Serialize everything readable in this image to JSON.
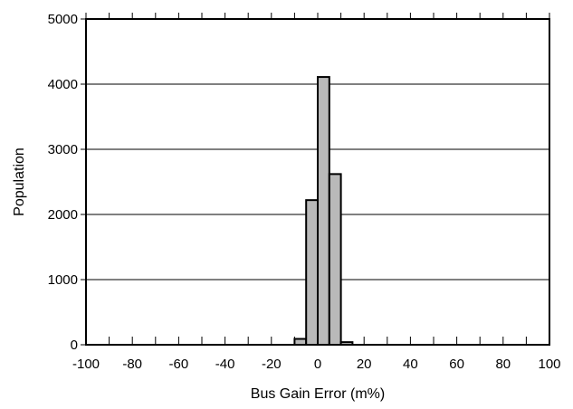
{
  "chart_data": {
    "type": "bar",
    "title": "",
    "xlabel": "Bus Gain Error (m%)",
    "ylabel": "Population",
    "xlim": [
      -100,
      100
    ],
    "ylim": [
      0,
      5000
    ],
    "xticks": [
      -100,
      -80,
      -60,
      -40,
      -20,
      0,
      20,
      40,
      60,
      80,
      100
    ],
    "yticks": [
      0,
      1000,
      2000,
      3000,
      4000,
      5000
    ],
    "bin_width": 5,
    "bins": [
      {
        "x_start": -10,
        "x_end": -5,
        "value": 90
      },
      {
        "x_start": -5,
        "x_end": 0,
        "value": 2220
      },
      {
        "x_start": 0,
        "x_end": 5,
        "value": 4110
      },
      {
        "x_start": 5,
        "x_end": 10,
        "value": 2620
      },
      {
        "x_start": 10,
        "x_end": 15,
        "value": 40
      }
    ],
    "bar_color": "#b9b9b9",
    "bar_edge_color": "#000000",
    "grid": "horizontal",
    "legend": "none"
  }
}
